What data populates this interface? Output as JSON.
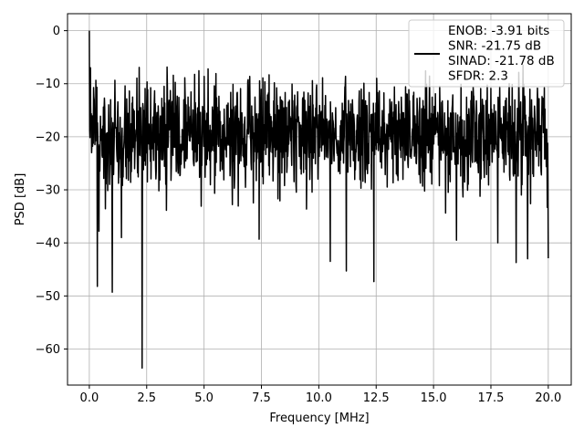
{
  "chart_data": {
    "type": "line",
    "xlabel": "Frequency [MHz]",
    "ylabel": "PSD [dB]",
    "xlim": [
      -0.95,
      21.0
    ],
    "ylim": [
      -66.8,
      3.2
    ],
    "xticks": [
      0.0,
      2.5,
      5.0,
      7.5,
      10.0,
      12.5,
      15.0,
      17.5,
      20.0
    ],
    "xtick_labels": [
      "0.0",
      "2.5",
      "5.0",
      "7.5",
      "10.0",
      "12.5",
      "15.0",
      "17.5",
      "20.0"
    ],
    "yticks": [
      0,
      -10,
      -20,
      -30,
      -40,
      -50,
      -60
    ],
    "ytick_labels": [
      "0",
      "−10",
      "−20",
      "−30",
      "−40",
      "−50",
      "−60"
    ],
    "grid": true,
    "legend_position": "top-right",
    "legend": {
      "lines": [
        "ENOB: -3.91 bits",
        "SNR: -21.75 dB",
        "SINAD: -21.78 dB",
        "SFDR: 2.3"
      ]
    },
    "series": [
      {
        "color": "#000000",
        "noise": {
          "x_start": 0.0,
          "x_end": 20.0,
          "y_center": -19.5,
          "y_band_upper": -11,
          "y_band_lower": -28,
          "y_extreme_upper": -6.5,
          "y_extreme_lower": -35
        },
        "features": [
          {
            "x": 0.0,
            "y": 0.0
          },
          {
            "x": 0.05,
            "y": -7.0
          },
          {
            "x": 0.1,
            "y": -23.0
          },
          {
            "x": 0.35,
            "y": -48.2
          },
          {
            "x": 0.42,
            "y": -37.8
          },
          {
            "x": 1.0,
            "y": -49.3
          },
          {
            "x": 1.4,
            "y": -39.0
          },
          {
            "x": 2.3,
            "y": -63.6
          },
          {
            "x": 7.4,
            "y": -39.3
          },
          {
            "x": 10.5,
            "y": -43.5
          },
          {
            "x": 11.2,
            "y": -45.3
          },
          {
            "x": 12.4,
            "y": -47.3
          },
          {
            "x": 16.0,
            "y": -39.5
          },
          {
            "x": 17.8,
            "y": -40.0
          },
          {
            "x": 18.6,
            "y": -43.7
          },
          {
            "x": 19.1,
            "y": -43.0
          },
          {
            "x": 20.0,
            "y": -42.9
          }
        ]
      }
    ]
  }
}
